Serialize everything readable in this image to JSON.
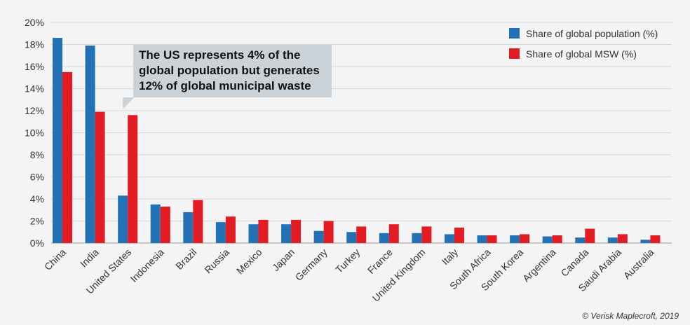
{
  "chart_data": {
    "type": "bar",
    "categories": [
      "China",
      "India",
      "United States",
      "Indonesia",
      "Brazil",
      "Russia",
      "Mexico",
      "Japan",
      "Germany",
      "Turkey",
      "France",
      "United Kingdom",
      "Italy",
      "South Africa",
      "South Korea",
      "Argentina",
      "Canada",
      "Saudi Arabia",
      "Australia"
    ],
    "series": [
      {
        "name": "Share of global population (%)",
        "color": "#2372b5",
        "values": [
          18.6,
          17.9,
          4.3,
          3.5,
          2.8,
          1.9,
          1.7,
          1.7,
          1.1,
          1.0,
          0.9,
          0.9,
          0.8,
          0.7,
          0.7,
          0.6,
          0.5,
          0.5,
          0.3
        ]
      },
      {
        "name": "Share of global MSW (%)",
        "color": "#e31c23",
        "values": [
          15.5,
          11.9,
          11.6,
          3.3,
          3.9,
          2.4,
          2.1,
          2.1,
          2.0,
          1.5,
          1.7,
          1.5,
          1.4,
          0.7,
          0.8,
          0.7,
          1.3,
          0.8,
          0.7
        ]
      }
    ],
    "ylim": [
      0,
      20
    ],
    "yticks": [
      "0%",
      "2%",
      "4%",
      "6%",
      "8%",
      "10%",
      "12%",
      "14%",
      "16%",
      "18%",
      "20%"
    ],
    "grid": true,
    "legend_position": "top-right",
    "annotation": {
      "lines": [
        "The US represents 4% of the",
        "global population but generates",
        "12% of global municipal waste"
      ],
      "target": "United States"
    },
    "source": "© Verisk Maplecroft, 2019"
  }
}
